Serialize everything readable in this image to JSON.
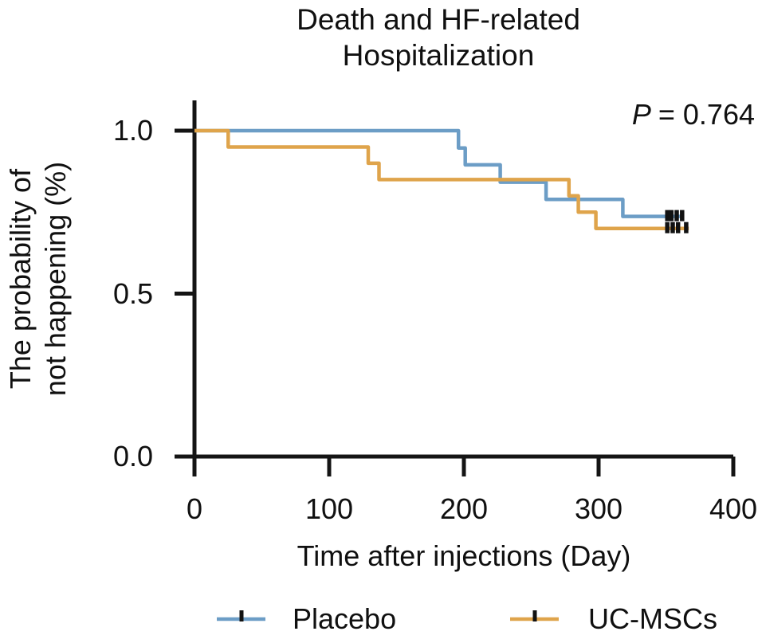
{
  "figure": {
    "title_line1": "Death and HF-related",
    "title_line2": "Hospitalization",
    "p_symbol": "P",
    "p_rest": "= 0.764",
    "background_color": "#ffffff",
    "text_color": "#101010",
    "axis_color": "#141414",
    "censor_mark_color": "#111111"
  },
  "chart_data": {
    "type": "line",
    "subtype": "kaplan-meier-step-curve",
    "title": "Death and HF-related Hospitalization",
    "annotation": "P = 0.764",
    "xlabel": "Time after injections (Day)",
    "ylabel": "The probability of not happening (%)",
    "ylabel_line1": "The probability of",
    "ylabel_line2": "not happening (%)",
    "xlim": [
      0,
      400
    ],
    "ylim": [
      0.0,
      1.0
    ],
    "x_ticks": [
      0,
      100,
      200,
      300,
      400
    ],
    "y_tick_values": [
      1.0,
      0.5,
      0.0
    ],
    "y_tick_labels": [
      "1.0",
      "0.5",
      "0.0"
    ],
    "grid": false,
    "legend_position": "bottom",
    "series": [
      {
        "name": "Placebo",
        "color": "#6c9dc6",
        "step": "post",
        "x": [
          0,
          196,
          201,
          227,
          261,
          318
        ],
        "y": [
          1.0,
          0.947,
          0.895,
          0.842,
          0.789,
          0.737
        ],
        "end_x": 363,
        "censor_times": [
          351,
          354,
          358,
          362
        ],
        "censor_y": 0.737
      },
      {
        "name": "UC-MSCs",
        "color": "#dfa44b",
        "step": "post",
        "x": [
          0,
          25,
          129,
          137,
          278,
          285,
          298
        ],
        "y": [
          1.0,
          0.95,
          0.9,
          0.85,
          0.8,
          0.75,
          0.7
        ],
        "end_x": 367,
        "censor_times": [
          351,
          355,
          359,
          365
        ],
        "censor_y": 0.7
      }
    ]
  }
}
